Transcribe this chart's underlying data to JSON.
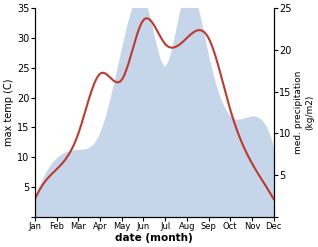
{
  "months": [
    "Jan",
    "Feb",
    "Mar",
    "Apr",
    "May",
    "Jun",
    "Jul",
    "Aug",
    "Sep",
    "Oct",
    "Nov",
    "Dec"
  ],
  "temperature": [
    3,
    8,
    14,
    24,
    23,
    33,
    29,
    30,
    30,
    18,
    9,
    3
  ],
  "precipitation": [
    2,
    7,
    8,
    10,
    20,
    26,
    18,
    27,
    19,
    12,
    12,
    8
  ],
  "temp_color": "#c0392b",
  "precip_color_fill": "#c5d5ea",
  "temp_ylim": [
    0,
    35
  ],
  "precip_ylim": [
    0,
    25
  ],
  "temp_yticks": [
    0,
    5,
    10,
    15,
    20,
    25,
    30,
    35
  ],
  "precip_yticks": [
    0,
    5,
    10,
    15,
    20,
    25
  ],
  "xlabel": "date (month)",
  "ylabel_left": "max temp (C)",
  "ylabel_right": "med. precipitation\n(kg/m2)",
  "background_color": "#ffffff"
}
